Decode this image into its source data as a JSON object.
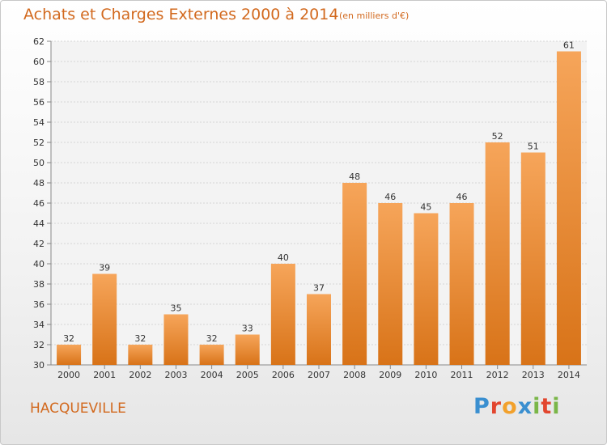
{
  "title": "Achats et Charges Externes 2000 à 2014",
  "subtitle": "(en milliers d'€)",
  "place": "HACQUEVILLE",
  "logo": {
    "text": "Proxiti",
    "letters": [
      {
        "ch": "P",
        "color": "#3a8fd0"
      },
      {
        "ch": "r",
        "color": "#e2462f"
      },
      {
        "ch": "o",
        "color": "#f2a12c"
      },
      {
        "ch": "x",
        "color": "#3a8fd0"
      },
      {
        "ch": "i",
        "color": "#7ab648"
      },
      {
        "ch": "t",
        "color": "#e2462f"
      },
      {
        "ch": "i",
        "color": "#7ab648"
      }
    ]
  },
  "colors": {
    "bar_top": "#f6a55a",
    "bar_bottom": "#d87318",
    "accent": "#d2691e"
  },
  "chart_data": {
    "type": "bar",
    "categories": [
      "2000",
      "2001",
      "2002",
      "2003",
      "2004",
      "2005",
      "2006",
      "2007",
      "2008",
      "2009",
      "2010",
      "2011",
      "2012",
      "2013",
      "2014"
    ],
    "values": [
      32,
      39,
      32,
      35,
      32,
      33,
      40,
      37,
      48,
      46,
      45,
      46,
      52,
      51,
      61
    ],
    "ylim": [
      30,
      62
    ],
    "yticks": [
      30,
      32,
      34,
      36,
      38,
      40,
      42,
      44,
      46,
      48,
      50,
      52,
      54,
      56,
      58,
      60,
      62
    ],
    "grid": true,
    "data_labels": true
  }
}
